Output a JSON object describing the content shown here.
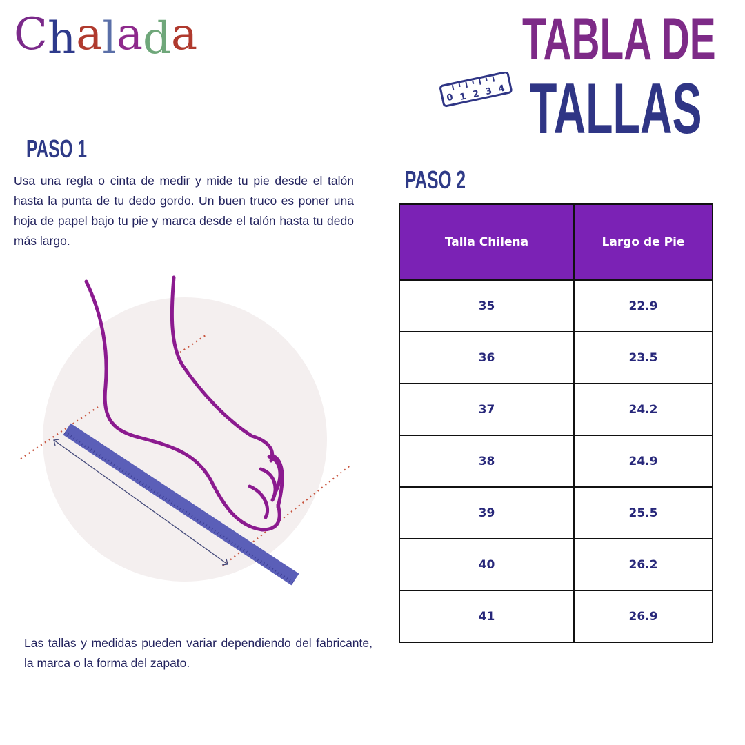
{
  "logo": {
    "text": "Chalada",
    "letters": [
      {
        "ch": "C",
        "color": "#7b2a8a"
      },
      {
        "ch": "h",
        "color": "#2e3a8c"
      },
      {
        "ch": "a",
        "color": "#b03a2e"
      },
      {
        "ch": "l",
        "color": "#5a6fa8"
      },
      {
        "ch": "a",
        "color": "#8e2a8c"
      },
      {
        "ch": "d",
        "color": "#6fa77a"
      },
      {
        "ch": "a",
        "color": "#b03a2e"
      }
    ]
  },
  "title": {
    "line1": "TABLA DE",
    "line2": "TALLAS",
    "badge_digits": [
      "0",
      "1",
      "2",
      "3",
      "4"
    ]
  },
  "step1": {
    "heading": "PASO 1",
    "text": "Usa una regla o cinta de medir y mide tu pie desde el talón hasta la punta de tu dedo gordo. Un buen truco es poner una hoja de papel bajo tu pie y marca desde el talón hasta tu dedo más largo."
  },
  "step2": {
    "heading": "PASO 2"
  },
  "table": {
    "headers": [
      "Talla Chilena",
      "Largo de Pie"
    ],
    "rows": [
      [
        "35",
        "22.9"
      ],
      [
        "36",
        "23.5"
      ],
      [
        "37",
        "24.2"
      ],
      [
        "38",
        "24.9"
      ],
      [
        "39",
        "25.5"
      ],
      [
        "40",
        "26.2"
      ],
      [
        "41",
        "26.9"
      ]
    ]
  },
  "note": "Las tallas y medidas pueden variar dependiendo del fabricante, la marca o la forma del zapato.",
  "colors": {
    "header_purple": "#7b22b5",
    "navy": "#2e3585",
    "title_purple": "#7d2a87",
    "foot": "#8b1a8f",
    "ruler": "#5b5fb8"
  }
}
